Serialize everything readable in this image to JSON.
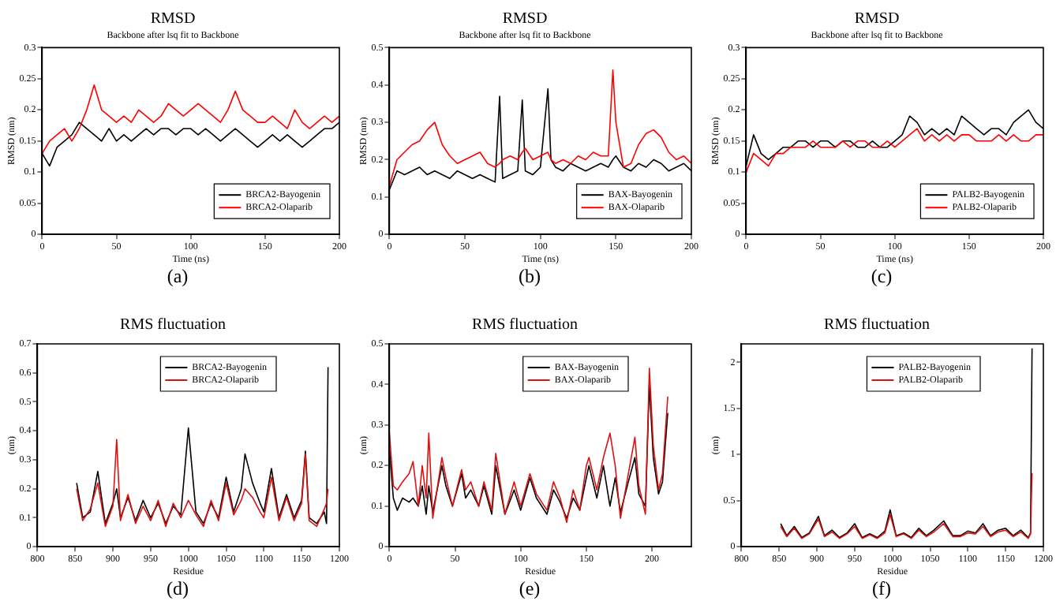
{
  "chart_data": [
    {
      "type": "line",
      "title": "RMSD",
      "subtitle": "Backbone after lsq fit to Backbone",
      "xlabel": "Time (ns)",
      "ylabel": "RMSD (nm)",
      "annotations": [
        "(a)"
      ],
      "legend": "bottom right",
      "grid": false,
      "marker": "none",
      "xlim": [
        0,
        200
      ],
      "xticks": [
        0,
        50,
        100,
        150,
        200
      ],
      "ylim": [
        0,
        0.3
      ],
      "yticks": [
        0,
        0.05,
        0.1,
        0.15,
        0.2,
        0.25,
        0.3
      ],
      "x": [
        0,
        5,
        10,
        15,
        20,
        25,
        30,
        35,
        40,
        45,
        50,
        55,
        60,
        65,
        70,
        75,
        80,
        85,
        90,
        95,
        100,
        105,
        110,
        115,
        120,
        125,
        130,
        135,
        140,
        145,
        150,
        155,
        160,
        165,
        170,
        175,
        180,
        185,
        190,
        195,
        200
      ],
      "series": [
        {
          "name": "BRCA2-Bayogenin",
          "color": "#000000",
          "values": [
            0.13,
            0.11,
            0.14,
            0.15,
            0.16,
            0.18,
            0.17,
            0.16,
            0.15,
            0.17,
            0.15,
            0.16,
            0.15,
            0.16,
            0.17,
            0.16,
            0.17,
            0.17,
            0.16,
            0.17,
            0.17,
            0.16,
            0.17,
            0.16,
            0.15,
            0.16,
            0.17,
            0.16,
            0.15,
            0.14,
            0.15,
            0.16,
            0.15,
            0.16,
            0.15,
            0.14,
            0.15,
            0.16,
            0.17,
            0.17,
            0.18
          ]
        },
        {
          "name": "BRCA2-Olaparib",
          "color": "#ff0000",
          "values": [
            0.13,
            0.15,
            0.16,
            0.17,
            0.15,
            0.17,
            0.2,
            0.24,
            0.2,
            0.19,
            0.18,
            0.19,
            0.18,
            0.2,
            0.19,
            0.18,
            0.19,
            0.21,
            0.2,
            0.19,
            0.2,
            0.21,
            0.2,
            0.19,
            0.18,
            0.2,
            0.23,
            0.2,
            0.19,
            0.18,
            0.18,
            0.19,
            0.18,
            0.17,
            0.2,
            0.18,
            0.17,
            0.18,
            0.19,
            0.18,
            0.19
          ]
        }
      ]
    },
    {
      "type": "line",
      "title": "RMSD",
      "subtitle": "Backbone after lsq fit to Backbone",
      "xlabel": "Time (ns)",
      "ylabel": "RMSD (nm)",
      "annotations": [
        "(b)"
      ],
      "legend": "bottom right",
      "grid": false,
      "marker": "none",
      "xlim": [
        0,
        200
      ],
      "xticks": [
        0,
        50,
        100,
        150,
        200
      ],
      "ylim": [
        0,
        0.5
      ],
      "yticks": [
        0,
        0.1,
        0.2,
        0.3,
        0.4,
        0.5
      ],
      "x": [
        0,
        5,
        10,
        15,
        20,
        25,
        30,
        35,
        40,
        45,
        50,
        55,
        60,
        65,
        70,
        73,
        75,
        80,
        85,
        88,
        90,
        95,
        100,
        105,
        107,
        110,
        115,
        120,
        125,
        130,
        135,
        140,
        145,
        148,
        150,
        155,
        160,
        165,
        170,
        175,
        180,
        185,
        190,
        195,
        200
      ],
      "series": [
        {
          "name": "BAX-Bayogenin",
          "color": "#000000",
          "values": [
            0.12,
            0.17,
            0.16,
            0.17,
            0.18,
            0.16,
            0.17,
            0.16,
            0.15,
            0.17,
            0.16,
            0.15,
            0.16,
            0.15,
            0.14,
            0.37,
            0.15,
            0.16,
            0.17,
            0.36,
            0.17,
            0.16,
            0.18,
            0.39,
            0.2,
            0.18,
            0.17,
            0.19,
            0.18,
            0.17,
            0.18,
            0.19,
            0.18,
            0.2,
            0.21,
            0.18,
            0.17,
            0.19,
            0.18,
            0.2,
            0.19,
            0.17,
            0.18,
            0.19,
            0.17
          ]
        },
        {
          "name": "BAX-Olaparib",
          "color": "#ff0000",
          "values": [
            0.13,
            0.2,
            0.22,
            0.24,
            0.25,
            0.28,
            0.3,
            0.24,
            0.21,
            0.19,
            0.2,
            0.21,
            0.22,
            0.19,
            0.18,
            0.19,
            0.2,
            0.21,
            0.2,
            0.22,
            0.23,
            0.2,
            0.21,
            0.22,
            0.2,
            0.19,
            0.2,
            0.19,
            0.21,
            0.2,
            0.22,
            0.21,
            0.21,
            0.44,
            0.3,
            0.18,
            0.19,
            0.24,
            0.27,
            0.28,
            0.26,
            0.22,
            0.2,
            0.21,
            0.19
          ]
        }
      ]
    },
    {
      "type": "line",
      "title": "RMSD",
      "subtitle": "Backbone after lsq fit to Backbone",
      "xlabel": "Time (ns)",
      "ylabel": "RMSD (nm)",
      "annotations": [
        "(c)"
      ],
      "legend": "bottom right",
      "grid": false,
      "marker": "none",
      "xlim": [
        0,
        200
      ],
      "xticks": [
        0,
        50,
        100,
        150,
        200
      ],
      "ylim": [
        0,
        0.3
      ],
      "yticks": [
        0,
        0.05,
        0.1,
        0.15,
        0.2,
        0.25,
        0.3
      ],
      "x": [
        0,
        5,
        10,
        15,
        20,
        25,
        30,
        35,
        40,
        45,
        50,
        55,
        60,
        65,
        70,
        75,
        80,
        85,
        90,
        95,
        100,
        105,
        110,
        115,
        120,
        125,
        130,
        135,
        140,
        145,
        150,
        155,
        160,
        165,
        170,
        175,
        180,
        185,
        190,
        195,
        200
      ],
      "series": [
        {
          "name": "PALB2-Bayogenin",
          "color": "#000000",
          "values": [
            0.11,
            0.16,
            0.13,
            0.12,
            0.13,
            0.14,
            0.14,
            0.15,
            0.15,
            0.14,
            0.15,
            0.15,
            0.14,
            0.15,
            0.15,
            0.14,
            0.14,
            0.15,
            0.14,
            0.14,
            0.15,
            0.16,
            0.19,
            0.18,
            0.16,
            0.17,
            0.16,
            0.17,
            0.16,
            0.19,
            0.18,
            0.17,
            0.16,
            0.17,
            0.17,
            0.16,
            0.18,
            0.19,
            0.2,
            0.18,
            0.17
          ]
        },
        {
          "name": "PALB2-Olaparib",
          "color": "#ff0000",
          "values": [
            0.1,
            0.13,
            0.12,
            0.11,
            0.13,
            0.13,
            0.14,
            0.14,
            0.14,
            0.15,
            0.14,
            0.14,
            0.14,
            0.15,
            0.14,
            0.15,
            0.15,
            0.14,
            0.14,
            0.15,
            0.14,
            0.15,
            0.16,
            0.17,
            0.15,
            0.16,
            0.15,
            0.16,
            0.15,
            0.16,
            0.16,
            0.15,
            0.15,
            0.15,
            0.16,
            0.15,
            0.16,
            0.15,
            0.15,
            0.16,
            0.16
          ]
        }
      ]
    },
    {
      "type": "line",
      "title": "RMS fluctuation",
      "xlabel": "Residue",
      "ylabel": "(nm)",
      "annotations": [
        "(d)"
      ],
      "legend": "top right",
      "grid": false,
      "marker": "none",
      "xlim": [
        800,
        1200
      ],
      "xticks": [
        800,
        850,
        900,
        950,
        1000,
        1050,
        1100,
        1150,
        1200
      ],
      "ylim": [
        0,
        0.7
      ],
      "yticks": [
        0,
        0.1,
        0.2,
        0.3,
        0.4,
        0.5,
        0.6,
        0.7
      ],
      "x": [
        852,
        860,
        870,
        880,
        890,
        900,
        905,
        910,
        920,
        930,
        940,
        950,
        960,
        970,
        980,
        990,
        1000,
        1010,
        1020,
        1030,
        1040,
        1050,
        1060,
        1070,
        1075,
        1085,
        1095,
        1100,
        1110,
        1120,
        1130,
        1140,
        1150,
        1155,
        1160,
        1170,
        1180,
        1183,
        1185
      ],
      "series": [
        {
          "name": "BRCA2-Bayogenin",
          "color": "#000000",
          "values": [
            0.22,
            0.1,
            0.12,
            0.26,
            0.08,
            0.15,
            0.2,
            0.1,
            0.17,
            0.09,
            0.16,
            0.1,
            0.15,
            0.08,
            0.14,
            0.11,
            0.41,
            0.12,
            0.08,
            0.15,
            0.1,
            0.24,
            0.12,
            0.2,
            0.32,
            0.22,
            0.15,
            0.12,
            0.27,
            0.1,
            0.18,
            0.1,
            0.16,
            0.33,
            0.1,
            0.08,
            0.12,
            0.08,
            0.62
          ]
        },
        {
          "name": "BRCA2-Olaparib",
          "color": "#dd1111",
          "values": [
            0.2,
            0.09,
            0.13,
            0.22,
            0.07,
            0.14,
            0.37,
            0.09,
            0.18,
            0.08,
            0.14,
            0.09,
            0.16,
            0.07,
            0.15,
            0.1,
            0.16,
            0.11,
            0.07,
            0.16,
            0.09,
            0.22,
            0.11,
            0.16,
            0.2,
            0.17,
            0.12,
            0.1,
            0.24,
            0.09,
            0.17,
            0.09,
            0.15,
            0.32,
            0.09,
            0.07,
            0.13,
            0.15,
            0.2
          ]
        }
      ]
    },
    {
      "type": "line",
      "title": "RMS fluctuation",
      "xlabel": "Residue",
      "ylabel": "(nm)",
      "annotations": [
        "(e)"
      ],
      "legend": "top right",
      "grid": false,
      "marker": "none",
      "xlim": [
        0,
        230
      ],
      "xticks": [
        0,
        50,
        100,
        150,
        200
      ],
      "ylim": [
        0,
        0.5
      ],
      "yticks": [
        0,
        0.1,
        0.2,
        0.3,
        0.4,
        0.5
      ],
      "x": [
        0,
        3,
        6,
        10,
        15,
        18,
        22,
        25,
        28,
        30,
        33,
        40,
        43,
        48,
        55,
        58,
        62,
        68,
        72,
        78,
        81,
        88,
        95,
        100,
        107,
        112,
        120,
        125,
        130,
        135,
        140,
        145,
        150,
        152,
        158,
        163,
        168,
        172,
        176,
        182,
        187,
        190,
        195,
        198,
        201,
        205,
        208,
        212
      ],
      "series": [
        {
          "name": "BAX-Bayogenin",
          "color": "#000000",
          "values": [
            0.24,
            0.12,
            0.09,
            0.12,
            0.11,
            0.12,
            0.1,
            0.15,
            0.08,
            0.15,
            0.085,
            0.2,
            0.15,
            0.1,
            0.18,
            0.12,
            0.14,
            0.1,
            0.15,
            0.08,
            0.2,
            0.08,
            0.14,
            0.09,
            0.17,
            0.12,
            0.08,
            0.14,
            0.11,
            0.07,
            0.12,
            0.09,
            0.17,
            0.2,
            0.12,
            0.2,
            0.1,
            0.17,
            0.085,
            0.16,
            0.22,
            0.13,
            0.1,
            0.4,
            0.22,
            0.13,
            0.16,
            0.33
          ]
        },
        {
          "name": "BAX-Olaparib",
          "color": "#dd1111",
          "values": [
            0.28,
            0.15,
            0.14,
            0.16,
            0.18,
            0.21,
            0.1,
            0.2,
            0.12,
            0.28,
            0.07,
            0.22,
            0.17,
            0.1,
            0.19,
            0.14,
            0.16,
            0.1,
            0.16,
            0.09,
            0.23,
            0.08,
            0.16,
            0.1,
            0.18,
            0.13,
            0.09,
            0.16,
            0.12,
            0.06,
            0.14,
            0.09,
            0.2,
            0.22,
            0.14,
            0.22,
            0.28,
            0.2,
            0.07,
            0.18,
            0.27,
            0.15,
            0.08,
            0.44,
            0.25,
            0.14,
            0.18,
            0.37
          ]
        }
      ]
    },
    {
      "type": "line",
      "title": "RMS fluctuation",
      "xlabel": "Residue",
      "ylabel": "(nm)",
      "annotations": [
        "(f)"
      ],
      "legend": "top right",
      "grid": false,
      "marker": "none",
      "xlim": [
        800,
        1200
      ],
      "xticks": [
        800,
        850,
        900,
        950,
        1000,
        1050,
        1100,
        1150,
        1200
      ],
      "ylim": [
        0,
        2.2
      ],
      "yticks": [
        0,
        0.5,
        1,
        1.5,
        2
      ],
      "x": [
        852,
        860,
        870,
        880,
        890,
        902,
        910,
        920,
        930,
        940,
        950,
        960,
        970,
        980,
        990,
        997,
        1005,
        1015,
        1025,
        1035,
        1045,
        1055,
        1068,
        1080,
        1090,
        1100,
        1110,
        1120,
        1130,
        1140,
        1150,
        1160,
        1170,
        1180,
        1183,
        1185
      ],
      "series": [
        {
          "name": "PALB2-Bayogenin",
          "color": "#000000",
          "values": [
            0.25,
            0.12,
            0.22,
            0.1,
            0.15,
            0.33,
            0.12,
            0.18,
            0.1,
            0.15,
            0.25,
            0.1,
            0.14,
            0.1,
            0.17,
            0.4,
            0.12,
            0.15,
            0.1,
            0.2,
            0.12,
            0.18,
            0.28,
            0.12,
            0.12,
            0.17,
            0.15,
            0.25,
            0.12,
            0.18,
            0.2,
            0.12,
            0.18,
            0.1,
            0.15,
            2.15
          ]
        },
        {
          "name": "PALB2-Olaparib",
          "color": "#dd1111",
          "values": [
            0.22,
            0.11,
            0.2,
            0.09,
            0.14,
            0.3,
            0.11,
            0.16,
            0.09,
            0.14,
            0.22,
            0.09,
            0.13,
            0.09,
            0.15,
            0.35,
            0.11,
            0.14,
            0.09,
            0.18,
            0.11,
            0.16,
            0.25,
            0.11,
            0.11,
            0.15,
            0.14,
            0.22,
            0.11,
            0.16,
            0.18,
            0.11,
            0.16,
            0.09,
            0.14,
            0.8
          ]
        }
      ]
    }
  ]
}
